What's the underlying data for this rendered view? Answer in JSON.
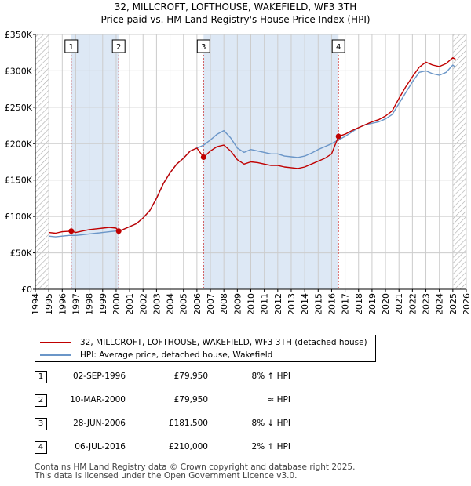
{
  "title": {
    "line1": "32, MILLCROFT, LOFTHOUSE, WAKEFIELD, WF3 3TH",
    "line2": "Price paid vs. HM Land Registry's House Price Index (HPI)"
  },
  "colors": {
    "price_paid": "#c00000",
    "hpi": "#6b96c8",
    "shade": "#dde8f5",
    "grid": "#cccccc",
    "hatch": "#999999",
    "event_line": "#d04040"
  },
  "chart_data": {
    "type": "line",
    "title": "Price paid vs. HM Land Registry's House Price Index (HPI)",
    "xlabel": "",
    "ylabel": "",
    "xlim": [
      1994,
      2026
    ],
    "ylim": [
      0,
      350000
    ],
    "x_ticks": [
      "1994",
      "1995",
      "1996",
      "1997",
      "1998",
      "1999",
      "2000",
      "2001",
      "2002",
      "2003",
      "2004",
      "2005",
      "2006",
      "2007",
      "2008",
      "2009",
      "2010",
      "2011",
      "2012",
      "2013",
      "2014",
      "2015",
      "2016",
      "2017",
      "2018",
      "2019",
      "2020",
      "2021",
      "2022",
      "2023",
      "2024",
      "2025",
      "2026"
    ],
    "y_ticks": [
      {
        "value": 0,
        "label": "£0"
      },
      {
        "value": 50000,
        "label": "£50K"
      },
      {
        "value": 100000,
        "label": "£100K"
      },
      {
        "value": 150000,
        "label": "£150K"
      },
      {
        "value": 200000,
        "label": "£200K"
      },
      {
        "value": 250000,
        "label": "£250K"
      },
      {
        "value": 300000,
        "label": "£300K"
      },
      {
        "value": 350000,
        "label": "£350K"
      }
    ],
    "grid": true,
    "hatched_ranges": [
      [
        1994,
        1995
      ],
      [
        2025,
        2026
      ]
    ],
    "shaded_ranges": [
      [
        1996.67,
        2000.19
      ],
      [
        2006.49,
        2016.51
      ]
    ],
    "series": [
      {
        "name": "32, MILLCROFT, LOFTHOUSE, WAKEFIELD, WF3 3TH (detached house)",
        "color": "#c00000",
        "points": [
          [
            1995.0,
            78000
          ],
          [
            1995.5,
            77000
          ],
          [
            1996.0,
            79000
          ],
          [
            1996.67,
            79950
          ],
          [
            1997.0,
            78000
          ],
          [
            1997.5,
            80000
          ],
          [
            1998.0,
            82000
          ],
          [
            1998.5,
            83000
          ],
          [
            1999.0,
            84000
          ],
          [
            1999.5,
            85000
          ],
          [
            2000.0,
            84000
          ],
          [
            2000.19,
            79950
          ],
          [
            2000.5,
            82000
          ],
          [
            2001.0,
            86000
          ],
          [
            2001.5,
            90000
          ],
          [
            2002.0,
            98000
          ],
          [
            2002.5,
            108000
          ],
          [
            2003.0,
            125000
          ],
          [
            2003.5,
            145000
          ],
          [
            2004.0,
            160000
          ],
          [
            2004.5,
            172000
          ],
          [
            2005.0,
            180000
          ],
          [
            2005.5,
            190000
          ],
          [
            2006.0,
            194000
          ],
          [
            2006.49,
            181500
          ],
          [
            2007.0,
            190000
          ],
          [
            2007.5,
            196000
          ],
          [
            2008.0,
            198000
          ],
          [
            2008.5,
            190000
          ],
          [
            2009.0,
            178000
          ],
          [
            2009.5,
            172000
          ],
          [
            2010.0,
            175000
          ],
          [
            2010.5,
            174000
          ],
          [
            2011.0,
            172000
          ],
          [
            2011.5,
            170000
          ],
          [
            2012.0,
            170000
          ],
          [
            2012.5,
            168000
          ],
          [
            2013.0,
            167000
          ],
          [
            2013.5,
            166000
          ],
          [
            2014.0,
            168000
          ],
          [
            2014.5,
            172000
          ],
          [
            2015.0,
            176000
          ],
          [
            2015.5,
            180000
          ],
          [
            2016.0,
            186000
          ],
          [
            2016.51,
            210000
          ],
          [
            2017.0,
            213000
          ],
          [
            2017.5,
            218000
          ],
          [
            2018.0,
            222000
          ],
          [
            2018.5,
            226000
          ],
          [
            2019.0,
            230000
          ],
          [
            2019.5,
            233000
          ],
          [
            2020.0,
            238000
          ],
          [
            2020.5,
            245000
          ],
          [
            2021.0,
            262000
          ],
          [
            2021.5,
            278000
          ],
          [
            2022.0,
            292000
          ],
          [
            2022.5,
            305000
          ],
          [
            2023.0,
            312000
          ],
          [
            2023.5,
            308000
          ],
          [
            2024.0,
            306000
          ],
          [
            2024.5,
            310000
          ],
          [
            2025.0,
            318000
          ],
          [
            2025.2,
            316000
          ]
        ]
      },
      {
        "name": "HPI: Average price, detached house, Wakefield",
        "color": "#6b96c8",
        "points": [
          [
            1995.0,
            73000
          ],
          [
            1995.5,
            72000
          ],
          [
            1996.0,
            73000
          ],
          [
            1996.5,
            74000
          ],
          [
            1997.0,
            74000
          ],
          [
            1997.5,
            75000
          ],
          [
            1998.0,
            76000
          ],
          [
            1998.5,
            77000
          ],
          [
            1999.0,
            78000
          ],
          [
            1999.5,
            79000
          ],
          [
            2000.0,
            80000
          ],
          [
            2000.5,
            82000
          ],
          [
            2001.0,
            86000
          ],
          [
            2001.5,
            90000
          ],
          [
            2002.0,
            98000
          ],
          [
            2002.5,
            108000
          ],
          [
            2003.0,
            125000
          ],
          [
            2003.5,
            145000
          ],
          [
            2004.0,
            160000
          ],
          [
            2004.5,
            172000
          ],
          [
            2005.0,
            180000
          ],
          [
            2005.5,
            190000
          ],
          [
            2006.0,
            194000
          ],
          [
            2006.5,
            198000
          ],
          [
            2007.0,
            205000
          ],
          [
            2007.5,
            213000
          ],
          [
            2008.0,
            218000
          ],
          [
            2008.5,
            208000
          ],
          [
            2009.0,
            194000
          ],
          [
            2009.5,
            188000
          ],
          [
            2010.0,
            192000
          ],
          [
            2010.5,
            190000
          ],
          [
            2011.0,
            188000
          ],
          [
            2011.5,
            186000
          ],
          [
            2012.0,
            186000
          ],
          [
            2012.5,
            183000
          ],
          [
            2013.0,
            182000
          ],
          [
            2013.5,
            181000
          ],
          [
            2014.0,
            183000
          ],
          [
            2014.5,
            187000
          ],
          [
            2015.0,
            192000
          ],
          [
            2015.5,
            196000
          ],
          [
            2016.0,
            200000
          ],
          [
            2016.5,
            205000
          ],
          [
            2017.0,
            210000
          ],
          [
            2017.5,
            216000
          ],
          [
            2018.0,
            222000
          ],
          [
            2018.5,
            226000
          ],
          [
            2019.0,
            228000
          ],
          [
            2019.5,
            230000
          ],
          [
            2020.0,
            234000
          ],
          [
            2020.5,
            240000
          ],
          [
            2021.0,
            255000
          ],
          [
            2021.5,
            270000
          ],
          [
            2022.0,
            285000
          ],
          [
            2022.5,
            298000
          ],
          [
            2023.0,
            300000
          ],
          [
            2023.5,
            296000
          ],
          [
            2024.0,
            294000
          ],
          [
            2024.5,
            298000
          ],
          [
            2025.0,
            308000
          ],
          [
            2025.2,
            305000
          ]
        ]
      }
    ],
    "events": [
      {
        "label": "1",
        "x": 1996.67,
        "value": 79950
      },
      {
        "label": "2",
        "x": 2000.19,
        "value": 79950
      },
      {
        "label": "3",
        "x": 2006.49,
        "value": 181500
      },
      {
        "label": "4",
        "x": 2016.51,
        "value": 210000
      }
    ]
  },
  "legend": {
    "price_paid_label": "32, MILLCROFT, LOFTHOUSE, WAKEFIELD, WF3 3TH (detached house)",
    "hpi_label": "HPI: Average price, detached house, Wakefield"
  },
  "sales": [
    {
      "num": "1",
      "date": "02-SEP-1996",
      "price": "£79,950",
      "relation": "8% ↑ HPI"
    },
    {
      "num": "2",
      "date": "10-MAR-2000",
      "price": "£79,950",
      "relation": "≈ HPI"
    },
    {
      "num": "3",
      "date": "28-JUN-2006",
      "price": "£181,500",
      "relation": "8% ↓ HPI"
    },
    {
      "num": "4",
      "date": "06-JUL-2016",
      "price": "£210,000",
      "relation": "2% ↑ HPI"
    }
  ],
  "footer": {
    "line1": "Contains HM Land Registry data © Crown copyright and database right 2025.",
    "line2": "This data is licensed under the Open Government Licence v3.0."
  }
}
